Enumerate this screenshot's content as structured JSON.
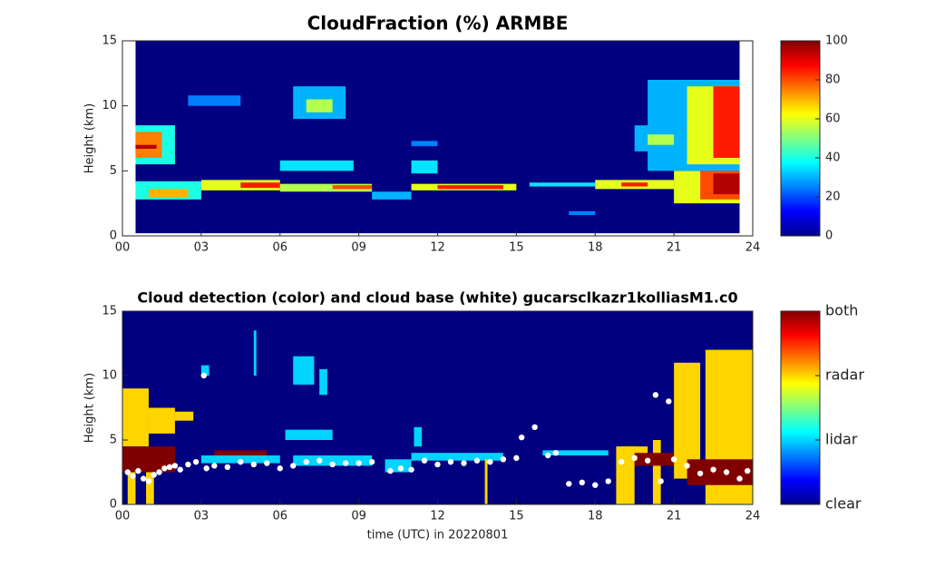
{
  "chart_data": [
    {
      "type": "heatmap",
      "title": "CloudFraction  (%) ARMBE",
      "y_label": "Height (km)",
      "xlim": [
        0,
        24
      ],
      "ylim": [
        0,
        15
      ],
      "xticks": [
        {
          "value": 0,
          "label": "00"
        },
        {
          "value": 3,
          "label": "03"
        },
        {
          "value": 6,
          "label": "06"
        },
        {
          "value": 9,
          "label": "09"
        },
        {
          "value": 12,
          "label": "12"
        },
        {
          "value": 15,
          "label": "15"
        },
        {
          "value": 18,
          "label": "18"
        },
        {
          "value": 21,
          "label": "21"
        },
        {
          "value": 24,
          "label": "24"
        }
      ],
      "yticks": [
        0,
        5,
        10,
        15
      ],
      "clim": [
        0,
        100
      ],
      "cticks": [
        0,
        20,
        40,
        60,
        80,
        100
      ],
      "colormap": "jet",
      "cells": [
        [
          0.5,
          23.5,
          0.2,
          15,
          0
        ],
        [
          0.5,
          3,
          2.8,
          4.2,
          40
        ],
        [
          1,
          2.5,
          3,
          3.6,
          70
        ],
        [
          3,
          6,
          3.5,
          4.3,
          60
        ],
        [
          4.5,
          6,
          3.7,
          4.1,
          85
        ],
        [
          6,
          9.5,
          3.4,
          4,
          55
        ],
        [
          8,
          9.5,
          3.6,
          3.9,
          80
        ],
        [
          9.5,
          11,
          2.8,
          3.4,
          30
        ],
        [
          11,
          15,
          3.5,
          4,
          60
        ],
        [
          12,
          14.5,
          3.6,
          3.9,
          85
        ],
        [
          15.5,
          18,
          3.8,
          4.1,
          35
        ],
        [
          18,
          21,
          3.6,
          4.3,
          60
        ],
        [
          19,
          20,
          3.8,
          4.1,
          85
        ],
        [
          21,
          23.5,
          2.5,
          5,
          60
        ],
        [
          22,
          23.5,
          2.8,
          6,
          80
        ],
        [
          22.5,
          23.5,
          3.2,
          4.8,
          95
        ],
        [
          0.5,
          2,
          5.5,
          8.5,
          40
        ],
        [
          0.5,
          1.5,
          6,
          8,
          75
        ],
        [
          0.5,
          1.3,
          6.7,
          7,
          95
        ],
        [
          20,
          23.5,
          5,
          12,
          30
        ],
        [
          21.5,
          23.5,
          5.5,
          11.5,
          60
        ],
        [
          22.5,
          23.5,
          6,
          11.5,
          85
        ],
        [
          19.5,
          21,
          6.5,
          8.5,
          30
        ],
        [
          20,
          21,
          7,
          7.8,
          55
        ],
        [
          6.5,
          8.5,
          9,
          11.5,
          30
        ],
        [
          7,
          8,
          9.5,
          10.5,
          55
        ],
        [
          6,
          8.8,
          5,
          5.8,
          35
        ],
        [
          2.5,
          4.5,
          10,
          10.8,
          25
        ],
        [
          11,
          12,
          4.8,
          5.8,
          35
        ],
        [
          11,
          12,
          6.9,
          7.3,
          25
        ],
        [
          17,
          18,
          1.6,
          1.9,
          25
        ]
      ]
    },
    {
      "type": "heatmap",
      "title": "Cloud detection (color) and cloud base (white) gucarsclkazr1kolliasM1.c0",
      "x_label": "time (UTC) in 20220801",
      "y_label": "Height (km)",
      "xlim": [
        0,
        24
      ],
      "ylim": [
        0,
        15
      ],
      "xticks": [
        {
          "value": 0,
          "label": "00"
        },
        {
          "value": 3,
          "label": "03"
        },
        {
          "value": 6,
          "label": "06"
        },
        {
          "value": 9,
          "label": "09"
        },
        {
          "value": 12,
          "label": "12"
        },
        {
          "value": 15,
          "label": "15"
        },
        {
          "value": 18,
          "label": "18"
        },
        {
          "value": 21,
          "label": "21"
        },
        {
          "value": 24,
          "label": "24"
        }
      ],
      "yticks": [
        0,
        5,
        10,
        15
      ],
      "clim": [
        0,
        3
      ],
      "cticks": [
        {
          "value": 0,
          "label": "clear"
        },
        {
          "value": 1,
          "label": "lidar"
        },
        {
          "value": 2,
          "label": "radar"
        },
        {
          "value": 3,
          "label": "both"
        }
      ],
      "colormap": "jet",
      "cells": [
        [
          0,
          24,
          0,
          15,
          0
        ],
        [
          0,
          1,
          4.5,
          9,
          2
        ],
        [
          1,
          2,
          5.5,
          7.5,
          2
        ],
        [
          2,
          2.7,
          6.5,
          7.2,
          2
        ],
        [
          0.2,
          0.5,
          0,
          3,
          2
        ],
        [
          0.9,
          1.2,
          0,
          3,
          2
        ],
        [
          0,
          2,
          2.5,
          4.5,
          3
        ],
        [
          3.5,
          5.5,
          3.8,
          4.2,
          3
        ],
        [
          3,
          6,
          3.2,
          3.8,
          1
        ],
        [
          6.5,
          9.5,
          3,
          3.8,
          1
        ],
        [
          11,
          14.5,
          3.4,
          4,
          1
        ],
        [
          10,
          11,
          2.5,
          3.5,
          1
        ],
        [
          6.5,
          7.3,
          9.3,
          11.5,
          1
        ],
        [
          7.5,
          7.8,
          8.5,
          10.5,
          1
        ],
        [
          3,
          3.3,
          10,
          10.8,
          1
        ],
        [
          6.2,
          8,
          5,
          5.8,
          1
        ],
        [
          11.1,
          11.4,
          4.5,
          6,
          1
        ],
        [
          16,
          18.5,
          3.8,
          4.2,
          1
        ],
        [
          5,
          5.1,
          10,
          13.5,
          1
        ],
        [
          18.8,
          19.5,
          0,
          4.5,
          2
        ],
        [
          20.2,
          20.5,
          0,
          5,
          2
        ],
        [
          21,
          22,
          2,
          11,
          2
        ],
        [
          22.2,
          24,
          0,
          12,
          2
        ],
        [
          19,
          20,
          3.8,
          4.5,
          2
        ],
        [
          13.8,
          13.9,
          0,
          3.5,
          2
        ],
        [
          21.5,
          24,
          1.5,
          3.5,
          3
        ],
        [
          19.5,
          21,
          3,
          4,
          3
        ]
      ],
      "points": [
        [
          0.2,
          2.5
        ],
        [
          0.4,
          2.2
        ],
        [
          0.6,
          2.6
        ],
        [
          0.8,
          2.0
        ],
        [
          1.0,
          1.8
        ],
        [
          1.2,
          2.3
        ],
        [
          1.4,
          2.5
        ],
        [
          1.6,
          2.8
        ],
        [
          1.8,
          2.9
        ],
        [
          2.0,
          3.0
        ],
        [
          2.2,
          2.7
        ],
        [
          2.5,
          3.1
        ],
        [
          2.8,
          3.3
        ],
        [
          3.1,
          10.0
        ],
        [
          3.2,
          2.8
        ],
        [
          3.5,
          3.0
        ],
        [
          4.0,
          2.9
        ],
        [
          4.5,
          3.3
        ],
        [
          5.0,
          3.1
        ],
        [
          5.5,
          3.2
        ],
        [
          6.0,
          2.8
        ],
        [
          6.5,
          3.0
        ],
        [
          7.0,
          3.3
        ],
        [
          7.5,
          3.4
        ],
        [
          8.0,
          3.1
        ],
        [
          8.5,
          3.2
        ],
        [
          9.0,
          3.2
        ],
        [
          9.5,
          3.3
        ],
        [
          10.2,
          2.6
        ],
        [
          10.6,
          2.8
        ],
        [
          11.0,
          2.7
        ],
        [
          11.5,
          3.4
        ],
        [
          12.0,
          3.1
        ],
        [
          12.5,
          3.3
        ],
        [
          13.0,
          3.2
        ],
        [
          13.5,
          3.4
        ],
        [
          14.0,
          3.3
        ],
        [
          14.5,
          3.5
        ],
        [
          15.0,
          3.6
        ],
        [
          15.2,
          5.2
        ],
        [
          15.7,
          6.0
        ],
        [
          16.2,
          3.8
        ],
        [
          16.5,
          4.0
        ],
        [
          17.0,
          1.6
        ],
        [
          17.5,
          1.7
        ],
        [
          18.0,
          1.5
        ],
        [
          18.5,
          1.8
        ],
        [
          19.0,
          3.3
        ],
        [
          19.5,
          3.6
        ],
        [
          20.0,
          3.4
        ],
        [
          20.3,
          8.5
        ],
        [
          20.5,
          1.8
        ],
        [
          20.8,
          8.0
        ],
        [
          21.0,
          3.5
        ],
        [
          21.5,
          3.0
        ],
        [
          22.0,
          2.4
        ],
        [
          22.5,
          2.7
        ],
        [
          23.0,
          2.5
        ],
        [
          23.5,
          2.0
        ],
        [
          23.8,
          2.6
        ]
      ]
    }
  ]
}
